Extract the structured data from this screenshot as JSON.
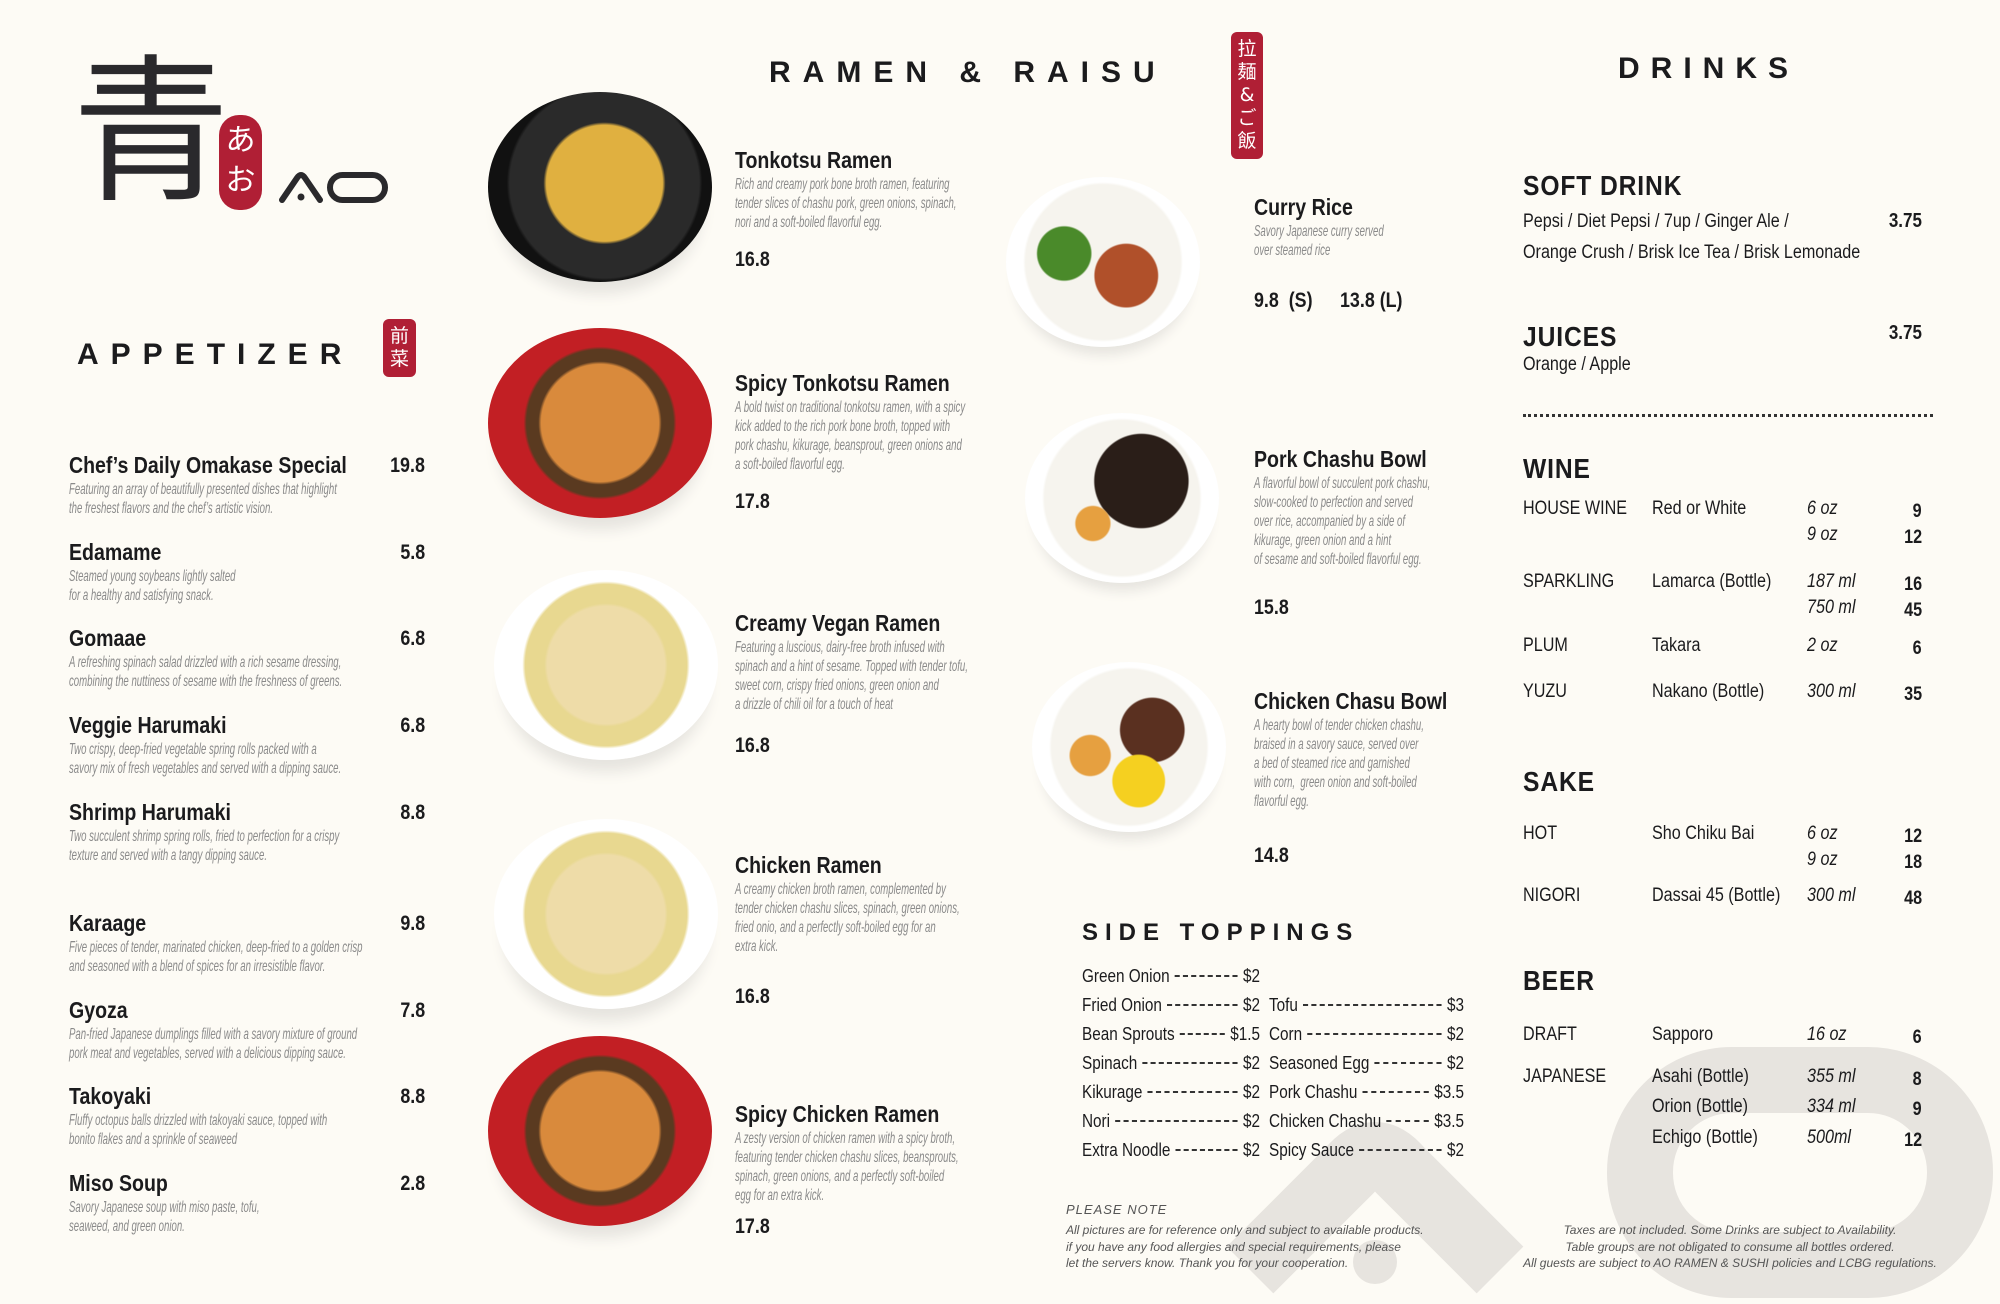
{
  "colors": {
    "background": "#fdfbf5",
    "accent_red": "#b01f35",
    "text": "#1b1b1d",
    "description": "#8a8a8a",
    "watermark": "#e7e4df"
  },
  "logo": {
    "kanji": "青",
    "kana": [
      "あ",
      "お"
    ],
    "latin": "AO"
  },
  "appetizer": {
    "title": "APPETIZER",
    "tag": [
      "前",
      "菜"
    ],
    "items": [
      {
        "name": "Chef’s Daily Omakase Special",
        "price": "19.8",
        "desc": "Featuring an array of beautifully presented dishes that highlight\nthe freshest flavors and the chef’s artistic vision."
      },
      {
        "name": "Edamame",
        "price": "5.8",
        "desc": "Steamed young soybeans lightly salted\nfor a healthy and satisfying snack."
      },
      {
        "name": "Gomaae",
        "price": "6.8",
        "desc": "A refreshing spinach salad drizzled with a rich sesame dressing,\ncombining the nuttiness of sesame with the freshness of greens."
      },
      {
        "name": "Veggie Harumaki",
        "price": "6.8",
        "desc": "Two crispy, deep-fried vegetable spring rolls packed with a\nsavory mix of fresh vegetables and served with a dipping sauce."
      },
      {
        "name": "Shrimp Harumaki",
        "price": "8.8",
        "desc": "Two succulent shrimp spring rolls, fried to perfection for a crispy\ntexture and served with a tangy dipping sauce."
      },
      {
        "name": "Karaage",
        "price": "9.8",
        "desc": "Five pieces of tender, marinated chicken, deep-fried to a golden crisp\nand seasoned with a blend of spices for an irresistible flavor."
      },
      {
        "name": "Gyoza",
        "price": "7.8",
        "desc": "Pan-fried Japanese dumplings filled with a savory mixture of ground\npork meat and vegetables, served with a delicious dipping sauce."
      },
      {
        "name": "Takoyaki",
        "price": "8.8",
        "desc": "Fluffy octopus balls drizzled with takoyaki sauce, topped with\nbonito flakes and a sprinkle of seaweed"
      },
      {
        "name": "Miso Soup",
        "price": "2.8",
        "desc": "Savory Japanese soup with miso paste, tofu,\nseaweed, and green onion."
      }
    ]
  },
  "ramen": {
    "title": "RAMEN & RAISU",
    "tag": [
      "拉",
      "麺",
      "&",
      "ご",
      "飯"
    ],
    "ramen_items": [
      {
        "name": "Tonkotsu Ramen",
        "price": "16.8",
        "bowl": "black",
        "desc": "Rich and creamy pork bone broth ramen, featuring\ntender slices of chashu pork, green onions, spinach,\nnori and a soft-boiled flavorful egg."
      },
      {
        "name": "Spicy Tonkotsu Ramen",
        "price": "17.8",
        "bowl": "red",
        "desc": "A bold twist on traditional tonkotsu ramen, with a spicy\nkick added to the rich pork bone broth, topped with\npork chashu, kikurage, beansprout, green onions and\na soft-boiled flavorful egg."
      },
      {
        "name": "Creamy Vegan Ramen",
        "price": "16.8",
        "bowl": "white",
        "desc": "Featuring a luscious, dairy-free broth infused with\nspinach and a hint of sesame. Topped with tender tofu,\nsweet corn, crispy fried onions, green onion and\na drizzle of chili oil for a touch of heat"
      },
      {
        "name": "Chicken Ramen",
        "price": "16.8",
        "bowl": "white",
        "desc": "A creamy chicken broth ramen, complemented by\ntender chicken chashu slices, spinach, green onions,\nfried onio, and a perfectly soft-boiled egg for an\nextra kick."
      },
      {
        "name": "Spicy Chicken Ramen",
        "price": "17.8",
        "bowl": "red",
        "desc": "A zesty version of chicken ramen with a spicy broth,\nfeaturing tender chicken chashu slices, beansprouts,\nspinach, green onions, and a perfectly soft-boiled\negg for an extra kick."
      }
    ],
    "rice_items": [
      {
        "name": "Curry Rice",
        "prices": [
          "9.8  (S)",
          "13.8 (L)"
        ],
        "desc": "Savory Japanese curry served\nover steamed rice"
      },
      {
        "name": "Pork Chashu Bowl",
        "prices": [
          "15.8"
        ],
        "desc": "A flavorful bowl of succulent pork chashu,\nslow-cooked to perfection and served\nover rice, accompanied by a side of\nkikurage, green onion and a hint\nof sesame and soft-boiled flavorful egg."
      },
      {
        "name": "Chicken Chasu Bowl",
        "prices": [
          "14.8"
        ],
        "desc": "A hearty bowl of tender chicken chashu,\nbraised in a savory sauce, served over\na bed of steamed rice and garnished\nwith corn,  green onion and soft-boiled\nflavorful egg."
      }
    ]
  },
  "side_toppings": {
    "title": "SIDE TOPPINGS",
    "col1": [
      {
        "name": "Green Onion",
        "price": "$2"
      },
      {
        "name": "Fried Onion",
        "price": "$2"
      },
      {
        "name": "Bean Sprouts",
        "price": "$1.5"
      },
      {
        "name": "Spinach",
        "price": "$2"
      },
      {
        "name": "Kikurage",
        "price": "$2"
      },
      {
        "name": "Nori",
        "price": "$2"
      },
      {
        "name": "Extra Noodle",
        "price": "$2"
      }
    ],
    "col2": [
      {
        "name": "Tofu",
        "price": "$3"
      },
      {
        "name": "Corn",
        "price": "$2"
      },
      {
        "name": "Seasoned Egg",
        "price": "$2"
      },
      {
        "name": "Pork Chashu",
        "price": "$3.5"
      },
      {
        "name": "Chicken Chashu",
        "price": "$3.5"
      },
      {
        "name": "Spicy Sauce",
        "price": "$2"
      }
    ]
  },
  "notes": {
    "heading": "PLEASE NOTE",
    "left": "All pictures are for reference only and subject to available products.\nif you have any food allergies and special requirements, please\nlet the servers know. Thank you for your cooperation.",
    "right": "Taxes are not included. Some Drinks are subject to Availability.\nTable groups are not obligated to consume all bottles ordered.\nAll guests are subject to AO RAMEN & SUSHI policies and LCBG regulations."
  },
  "drinks": {
    "title": "DRINKS",
    "soft_drink": {
      "heading": "SOFT DRINK",
      "lines": [
        "Pepsi / Diet Pepsi / 7up / Ginger Ale /",
        "Orange Crush / Brisk Ice Tea / Brisk Lemonade"
      ],
      "price": "3.75"
    },
    "juices": {
      "heading": "JUICES",
      "lines": [
        "Orange / Apple"
      ],
      "price": "3.75"
    },
    "sections": [
      {
        "heading": "WINE",
        "rows": [
          {
            "category": "HOUSE WINE",
            "name": "Red or White",
            "sizes": [
              {
                "size": "6 oz",
                "price": "9"
              },
              {
                "size": "9 oz",
                "price": "12"
              }
            ]
          },
          {
            "category": "SPARKLING",
            "name": "Lamarca (Bottle)",
            "sizes": [
              {
                "size": "187 ml",
                "price": "16"
              },
              {
                "size": "750 ml",
                "price": "45"
              }
            ]
          },
          {
            "category": "PLUM",
            "name": "Takara",
            "sizes": [
              {
                "size": "2 oz",
                "price": "6"
              }
            ]
          },
          {
            "category": "YUZU",
            "name": "Nakano (Bottle)",
            "sizes": [
              {
                "size": "300 ml",
                "price": "35"
              }
            ]
          }
        ]
      },
      {
        "heading": "SAKE",
        "rows": [
          {
            "category": "HOT",
            "name": "Sho Chiku Bai",
            "sizes": [
              {
                "size": "6 oz",
                "price": "12"
              },
              {
                "size": "9 oz",
                "price": "18"
              }
            ]
          },
          {
            "category": "NIGORI",
            "name": "Dassai 45 (Bottle)",
            "sizes": [
              {
                "size": "300 ml",
                "price": "48"
              }
            ]
          }
        ]
      },
      {
        "heading": "BEER",
        "rows": [
          {
            "category": "DRAFT",
            "name": "Sapporo",
            "sizes": [
              {
                "size": "16 oz",
                "price": "6"
              }
            ]
          },
          {
            "category": "JAPANESE",
            "name": "Asahi (Bottle)",
            "sizes": [
              {
                "size": "355 ml",
                "price": "8"
              }
            ]
          },
          {
            "category": "",
            "name": "Orion (Bottle)",
            "sizes": [
              {
                "size": "334 ml",
                "price": "9"
              }
            ]
          },
          {
            "category": "",
            "name": "Echigo (Bottle)",
            "sizes": [
              {
                "size": "500ml",
                "price": "12"
              }
            ]
          }
        ]
      }
    ]
  }
}
